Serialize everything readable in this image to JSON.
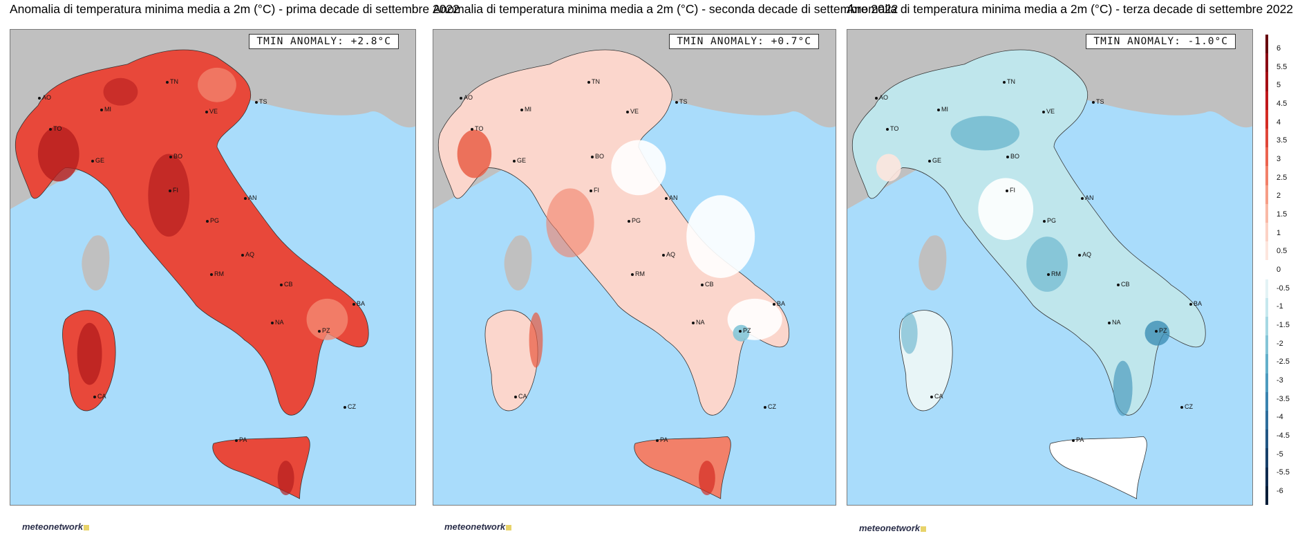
{
  "panels": [
    {
      "title": "Anomalia di temperatura minima media a 2m (°C) - prima decade di settembre 2022",
      "anomaly": "TMIN ANOMALY: +2.8°C",
      "fill": "#e8483a",
      "fill_dark": "#b51e1e",
      "fill_light": "#f48a73"
    },
    {
      "title": "Anomalia di temperatura minima media a 2m (°C) - seconda decade di settembre 2022",
      "anomaly": "TMIN ANOMALY: +0.7°C",
      "fill": "#fbd6cc",
      "fill_dark": "#e8583f",
      "fill_light": "#ffffff"
    },
    {
      "title": "Anomalia di temperatura minima media a 2m (°C) - terza decade di settembre 2022",
      "anomaly": "TMIN ANOMALY: -1.0°C",
      "fill": "#bfe6ec",
      "fill_dark": "#3d8fb5",
      "fill_light": "#ffffff"
    }
  ],
  "cities": [
    "TN",
    "AO",
    "MI",
    "VE",
    "TS",
    "TO",
    "BO",
    "GE",
    "FI",
    "AN",
    "PG",
    "AQ",
    "RM",
    "CB",
    "BA",
    "NA",
    "PZ",
    "CZ",
    "PA",
    "CA"
  ],
  "logo": "meteonetwork",
  "colorbar": {
    "labels": [
      "6",
      "5.5",
      "5",
      "4.5",
      "4",
      "3.5",
      "3",
      "2.5",
      "2",
      "1.5",
      "1",
      "0.5",
      "0",
      "-0.5",
      "-1",
      "-1.5",
      "-2",
      "-2.5",
      "-3",
      "-3.5",
      "-4",
      "-4.5",
      "-5",
      "-5.5",
      "-6"
    ],
    "colors": [
      "#67000d",
      "#8b0a14",
      "#a50f15",
      "#c0181c",
      "#d42c24",
      "#e0473a",
      "#ec6450",
      "#f28069",
      "#f69d86",
      "#f9b9a6",
      "#fcd2c5",
      "#fde6de",
      "#ffffff",
      "#e3f3f5",
      "#c6e8ee",
      "#a5d8e3",
      "#84c5d7",
      "#63b0cb",
      "#4d9bbf",
      "#3b84b0",
      "#2e6e9c",
      "#225784",
      "#18406a",
      "#0f2b4f",
      "#081d38"
    ]
  }
}
